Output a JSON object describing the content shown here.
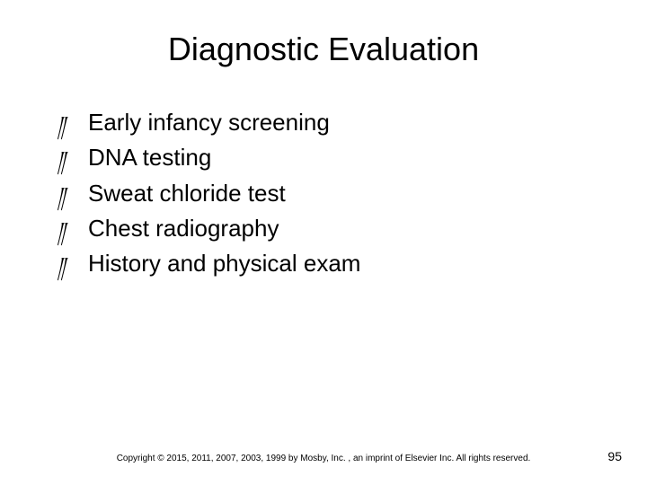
{
  "title": "Diagnostic Evaluation",
  "bullets": {
    "glyph": "༎",
    "items": [
      "Early infancy screening",
      "DNA testing",
      "Sweat chloride test",
      "Chest radiography",
      "History and physical exam"
    ]
  },
  "footer": {
    "copyright": "Copyright © 2015, 2011, 2007, 2003, 1999 by Mosby, Inc. , an imprint of Elsevier Inc. All rights reserved.",
    "page_number": "95"
  },
  "style": {
    "background_color": "#ffffff",
    "text_color": "#000000",
    "title_fontsize": 36,
    "body_fontsize": 26,
    "footer_fontsize": 10,
    "pagenum_fontsize": 14
  }
}
